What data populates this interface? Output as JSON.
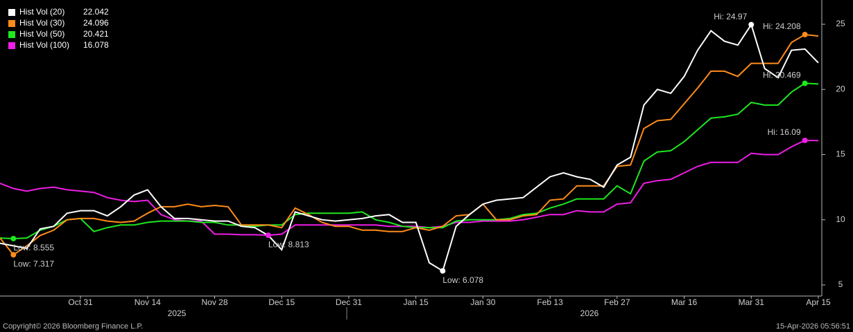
{
  "chart_data": {
    "type": "line",
    "categories": [
      null,
      null,
      null,
      null,
      null,
      null,
      "Oct 31",
      null,
      null,
      null,
      null,
      "Nov 14",
      null,
      null,
      null,
      null,
      "Nov 28",
      null,
      null,
      null,
      null,
      "Dec 15",
      null,
      null,
      null,
      null,
      "Dec 31",
      null,
      null,
      null,
      null,
      "Jan 15",
      null,
      null,
      null,
      null,
      "Jan 30",
      null,
      null,
      null,
      null,
      "Feb 13",
      null,
      null,
      null,
      null,
      "Feb 27",
      null,
      null,
      null,
      null,
      "Mar 16",
      null,
      null,
      null,
      null,
      "Mar 31",
      null,
      null,
      null,
      null,
      "Apr 15"
    ],
    "year_labels": [
      "2025",
      "2026"
    ],
    "series": [
      {
        "name": "Hist Vol (20)",
        "color": "#ffffff",
        "values": [
          8.2,
          8.0,
          7.8,
          9.3,
          9.5,
          10.5,
          10.7,
          10.7,
          10.3,
          11.0,
          11.9,
          12.3,
          11.0,
          10.1,
          10.1,
          10.0,
          9.9,
          9.9,
          9.5,
          9.4,
          8.8,
          7.7,
          10.6,
          10.3,
          10.0,
          9.9,
          10.0,
          10.1,
          10.3,
          10.4,
          9.8,
          9.8,
          6.7,
          6.078,
          9.5,
          10.4,
          11.2,
          11.5,
          11.6,
          11.7,
          12.5,
          13.3,
          13.6,
          13.3,
          13.1,
          12.5,
          14.2,
          14.8,
          18.8,
          20.0,
          19.7,
          21.0,
          23.0,
          24.5,
          23.7,
          23.4,
          24.97,
          21.6,
          20.9,
          23.0,
          23.1,
          22.042
        ]
      },
      {
        "name": "Hist Vol (30)",
        "color": "#ff8c1a",
        "values": [
          8.6,
          7.317,
          8.0,
          8.8,
          9.2,
          10.0,
          10.1,
          10.1,
          9.9,
          9.8,
          9.9,
          10.5,
          11.0,
          11.0,
          11.2,
          11.0,
          11.1,
          11.0,
          9.6,
          9.6,
          9.6,
          9.4,
          10.9,
          10.4,
          9.8,
          9.5,
          9.5,
          9.2,
          9.2,
          9.1,
          9.1,
          9.4,
          9.2,
          9.5,
          10.3,
          10.4,
          11.2,
          10.0,
          10.0,
          10.3,
          10.4,
          11.5,
          11.6,
          12.6,
          12.6,
          12.6,
          14.1,
          14.2,
          17.0,
          17.6,
          17.7,
          18.9,
          20.1,
          21.4,
          21.4,
          21.0,
          22.0,
          22.0,
          22.0,
          23.6,
          24.208,
          24.096
        ]
      },
      {
        "name": "Hist Vol (50)",
        "color": "#1ee81e",
        "values": [
          8.6,
          8.555,
          8.6,
          9.2,
          9.5,
          10.0,
          10.1,
          9.1,
          9.4,
          9.6,
          9.6,
          9.8,
          9.9,
          9.9,
          9.9,
          9.8,
          9.8,
          9.6,
          9.6,
          9.5,
          9.6,
          9.6,
          10.4,
          10.5,
          10.5,
          10.5,
          10.5,
          10.6,
          10.0,
          9.8,
          9.5,
          9.4,
          9.4,
          9.4,
          9.9,
          10.0,
          10.0,
          10.0,
          10.1,
          10.4,
          10.5,
          10.9,
          11.2,
          11.6,
          11.6,
          11.6,
          12.6,
          12.0,
          14.5,
          15.2,
          15.3,
          16.0,
          16.9,
          17.8,
          17.9,
          18.1,
          19.0,
          18.8,
          18.8,
          19.8,
          20.469,
          20.421
        ]
      },
      {
        "name": "Hist Vol (100)",
        "color": "#ee1ee6",
        "values": [
          12.8,
          12.4,
          12.2,
          12.4,
          12.5,
          12.3,
          12.2,
          12.1,
          11.7,
          11.5,
          11.4,
          11.5,
          10.4,
          10.0,
          9.9,
          9.9,
          8.9,
          8.9,
          8.85,
          8.85,
          8.813,
          8.9,
          9.6,
          9.6,
          9.6,
          9.6,
          9.6,
          9.6,
          9.6,
          9.5,
          9.5,
          9.5,
          9.4,
          9.5,
          9.8,
          9.8,
          9.9,
          9.9,
          9.9,
          10.0,
          10.2,
          10.4,
          10.4,
          10.7,
          10.6,
          10.6,
          11.2,
          11.3,
          12.8,
          13.0,
          13.1,
          13.6,
          14.1,
          14.4,
          14.4,
          14.4,
          15.1,
          15.0,
          15.0,
          15.6,
          16.09,
          16.078
        ]
      }
    ],
    "annotations": [
      {
        "label": "Hi: 24.97",
        "series": 0,
        "index": 56
      },
      {
        "label": "Low: 6.078",
        "series": 0,
        "index": 33
      },
      {
        "label": "Hi: 24.208",
        "series": 1,
        "index": 60
      },
      {
        "label": "Low: 7.317",
        "series": 1,
        "index": 1
      },
      {
        "label": "Hi: 20.469",
        "series": 2,
        "index": 60
      },
      {
        "label": "Low: 8.555",
        "series": 2,
        "index": 1
      },
      {
        "label": "Hi: 16.09",
        "series": 3,
        "index": 60
      },
      {
        "label": "Low: 8.813",
        "series": 3,
        "index": 20
      }
    ],
    "ylim": [
      4.15,
      26.86
    ],
    "yticks": [
      5,
      10,
      15,
      20,
      25
    ],
    "grid": false,
    "copyright": "Copyright© 2026 Bloomberg Finance L.P.",
    "timestamp": "15-Apr-2026 05:56:51"
  }
}
